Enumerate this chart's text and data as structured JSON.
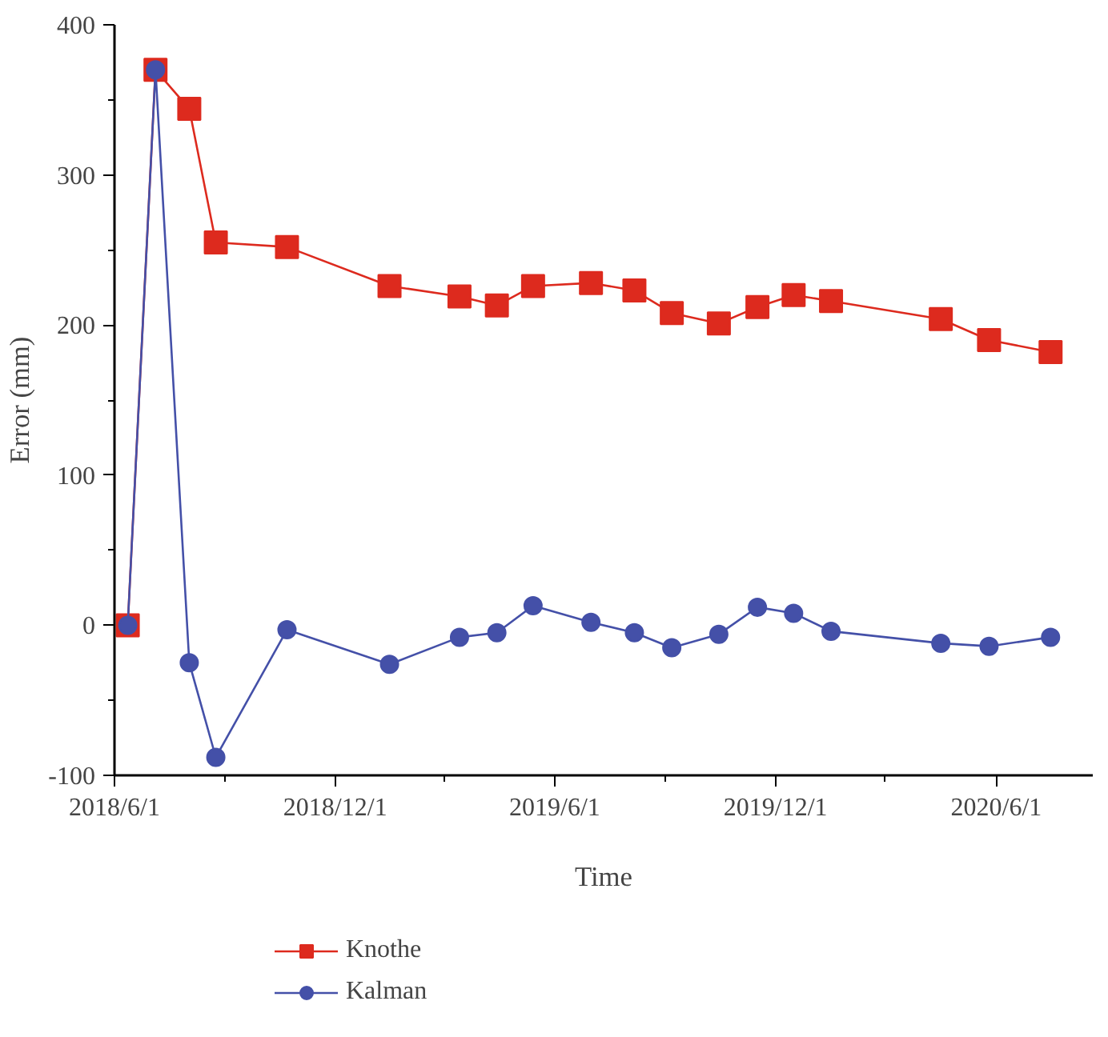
{
  "chart_data": {
    "type": "line",
    "xlabel": "Time",
    "ylabel": "Error (mm)",
    "x": [
      "2018-06-12",
      "2018-07-05",
      "2018-08-02",
      "2018-08-24",
      "2018-10-22",
      "2019-01-15",
      "2019-03-14",
      "2019-04-14",
      "2019-05-14",
      "2019-07-01",
      "2019-08-06",
      "2019-09-06",
      "2019-10-15",
      "2019-11-16",
      "2019-12-16",
      "2020-01-16",
      "2020-04-16",
      "2020-05-26",
      "2020-07-16"
    ],
    "series": [
      {
        "name": "Knothe",
        "color": "#dd2a1e",
        "marker": "square",
        "values": [
          0,
          370,
          344,
          255,
          252,
          226,
          219,
          213,
          226,
          228,
          223,
          208,
          201,
          212,
          220,
          216,
          204,
          190,
          182
        ]
      },
      {
        "name": "Kalman",
        "color": "#4450a8",
        "marker": "circle",
        "values": [
          0,
          370,
          -25,
          -88,
          -3,
          -26,
          -8,
          -5,
          13,
          2,
          -5,
          -15,
          -6,
          12,
          8,
          -4,
          -12,
          -14,
          -8
        ]
      }
    ],
    "xlim": [
      "2018-06-01",
      "2020-08-20"
    ],
    "xticks": [
      {
        "value": "2018-06-01",
        "label": "2018/6/1"
      },
      {
        "value": "2018-09-01",
        "label": null
      },
      {
        "value": "2018-12-01",
        "label": "2018/12/1"
      },
      {
        "value": "2019-03-01",
        "label": null
      },
      {
        "value": "2019-06-01",
        "label": "2019/6/1"
      },
      {
        "value": "2019-09-01",
        "label": null
      },
      {
        "value": "2019-12-01",
        "label": "2019/12/1"
      },
      {
        "value": "2020-03-01",
        "label": null
      },
      {
        "value": "2020-06-01",
        "label": "2020/6/1"
      }
    ],
    "ylim": [
      -100,
      400
    ],
    "yticks": [
      -100,
      {
        "value": -50,
        "label": null
      },
      0,
      {
        "value": 50,
        "label": null
      },
      100,
      {
        "value": 150,
        "label": null
      },
      200,
      {
        "value": 250,
        "label": null
      },
      300,
      {
        "value": 350,
        "label": null
      },
      400
    ],
    "grid": false,
    "legend": "bottom",
    "line_style": "solid"
  }
}
